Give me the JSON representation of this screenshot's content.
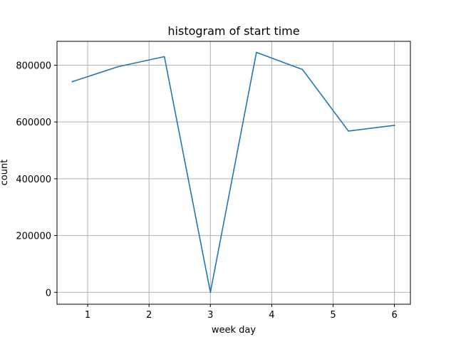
{
  "chart_data": {
    "type": "line",
    "title": "histogram of start time",
    "xlabel": "week day",
    "ylabel": "count",
    "xlim": [
      0.5,
      6.26
    ],
    "ylim": [
      -42000,
      884000
    ],
    "xticks": [
      1,
      2,
      3,
      4,
      5,
      6
    ],
    "yticks": [
      0,
      200000,
      400000,
      600000,
      800000
    ],
    "grid": true,
    "color": "#1f77b4",
    "series": [
      {
        "x": [
          0.75,
          1.5,
          2.25,
          3.0,
          3.75,
          4.5,
          5.25,
          6.0
        ],
        "y": [
          742000,
          795000,
          830000,
          0,
          845000,
          785000,
          568000,
          588000
        ]
      }
    ]
  }
}
